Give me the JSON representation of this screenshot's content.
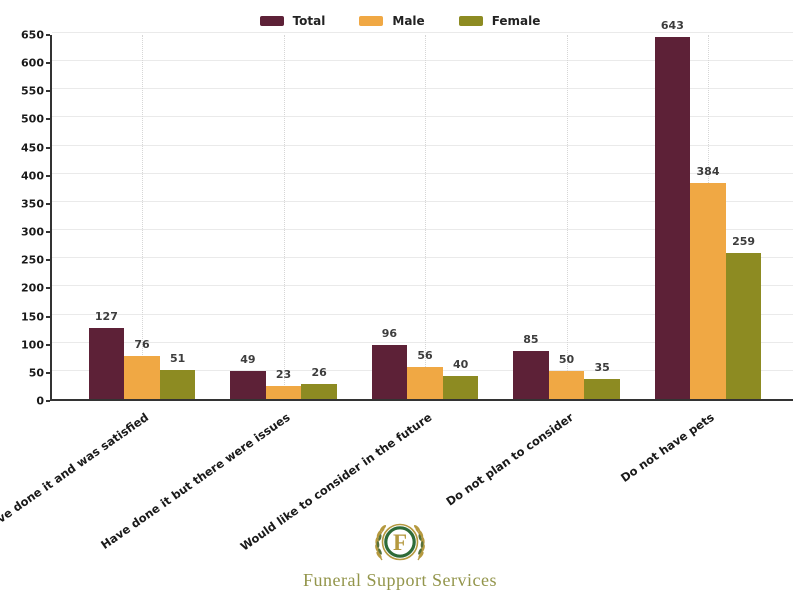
{
  "chart_data": {
    "type": "bar",
    "title": "",
    "xlabel": "",
    "ylabel": "",
    "categories": [
      "Have done it and was satisfied",
      "Have done it but there were issues",
      "Would like to consider in the future",
      "Do not plan to consider",
      "Do not have pets"
    ],
    "series": [
      {
        "name": "Total",
        "color": "#5d2137",
        "values": [
          127,
          49,
          96,
          85,
          643
        ]
      },
      {
        "name": "Male",
        "color": "#f0a844",
        "values": [
          76,
          23,
          56,
          50,
          384
        ]
      },
      {
        "name": "Female",
        "color": "#8d8b22",
        "values": [
          51,
          26,
          40,
          35,
          259
        ]
      }
    ],
    "ylim": [
      0,
      650
    ],
    "ytick_step": 50,
    "grid": {
      "horizontal": "solid light gray",
      "vertical": "dotted at each category center"
    },
    "legend_position": "top-center",
    "bar_value_labels": true
  },
  "footer": {
    "brand": "Funeral Support Services",
    "logo_letter": "F"
  },
  "colors": {
    "total": "#5d2137",
    "male": "#f0a844",
    "female": "#8d8b22",
    "axis": "#333333",
    "grid_h": "#eaeaea",
    "grid_v": "#d6d6d6",
    "tick_text": "#1a1a1a",
    "value_text": "#3d3d3d",
    "logo_gold": "#b5993f",
    "logo_green": "#2e6b38",
    "brand_text": "#93954b"
  }
}
